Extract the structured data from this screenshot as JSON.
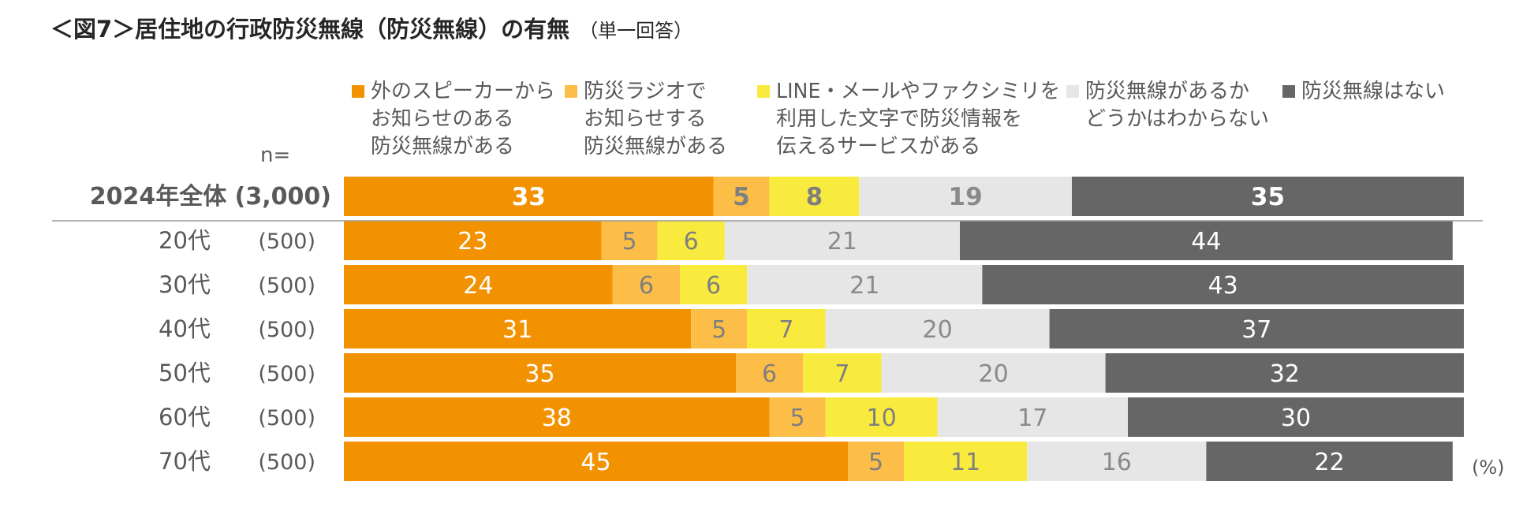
{
  "title": {
    "main": "＜図7＞居住地の行政防災無線（防災無線）の有無",
    "sub": "（単一回答）"
  },
  "n_label": "n=",
  "unit_label": "(%)",
  "colors": {
    "outdoor_speaker": "#F39200",
    "radio": "#FDBE48",
    "text_service": "#F9EB3E",
    "unknown": "#E6E6E6",
    "none": "#666666"
  },
  "chart_data": {
    "type": "bar",
    "orientation": "horizontal",
    "stacked": true,
    "xlim": [
      0,
      100
    ],
    "categories": [
      "2024年全体",
      "20代",
      "30代",
      "40代",
      "50代",
      "60代",
      "70代"
    ],
    "sample_sizes": [
      "(3,000)",
      "(500)",
      "(500)",
      "(500)",
      "(500)",
      "(500)",
      "(500)"
    ],
    "emphasized_category": "2024年全体",
    "series": [
      {
        "key": "outdoor_speaker",
        "name": "外のスピーカーからお知らせのある防災無線がある",
        "legend_lines": [
          "外のスピーカーから",
          "お知らせのある",
          "防災無線がある"
        ],
        "values": [
          33,
          23,
          24,
          31,
          35,
          38,
          45
        ]
      },
      {
        "key": "radio",
        "name": "防災ラジオでお知らせする防災無線がある",
        "legend_lines": [
          "防災ラジオで",
          "お知らせする",
          "防災無線がある"
        ],
        "values": [
          5,
          5,
          6,
          5,
          6,
          5,
          5
        ]
      },
      {
        "key": "text_service",
        "name": "LINE・メールやファクシミリを利用した文字で防災情報を伝えるサービスがある",
        "legend_lines": [
          "LINE・メールやファクシミリを",
          "利用した文字で防災情報を",
          "伝えるサービスがある"
        ],
        "values": [
          8,
          6,
          6,
          7,
          7,
          10,
          11
        ]
      },
      {
        "key": "unknown",
        "name": "防災無線があるかどうかはわからない",
        "legend_lines": [
          "防災無線があるか",
          "どうかはわからない"
        ],
        "values": [
          19,
          21,
          21,
          20,
          20,
          17,
          16
        ]
      },
      {
        "key": "none",
        "name": "防災無線はない",
        "legend_lines": [
          "防災無線はない"
        ],
        "values": [
          35,
          44,
          43,
          37,
          32,
          30,
          22
        ]
      }
    ]
  }
}
